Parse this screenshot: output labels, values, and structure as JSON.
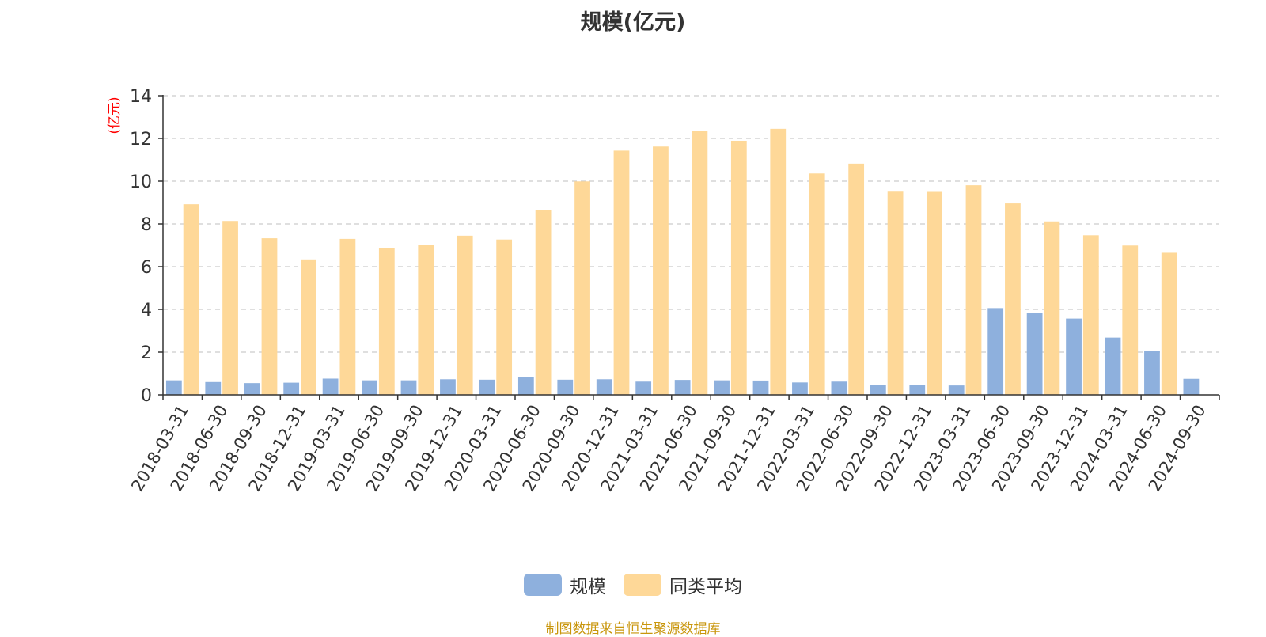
{
  "chart_data": {
    "type": "bar",
    "title": "规模(亿元)",
    "ylabel": "(亿元)",
    "xlabel": "",
    "ylim": [
      0,
      14
    ],
    "yticks": [
      0,
      2,
      4,
      6,
      8,
      10,
      12,
      14
    ],
    "grid": true,
    "legend_position": "bottom-center",
    "categories": [
      "2018-03-31",
      "2018-06-30",
      "2018-09-30",
      "2018-12-31",
      "2019-03-31",
      "2019-06-30",
      "2019-09-30",
      "2019-12-31",
      "2020-03-31",
      "2020-06-30",
      "2020-09-30",
      "2020-12-31",
      "2021-03-31",
      "2021-06-30",
      "2021-09-30",
      "2021-12-31",
      "2022-03-31",
      "2022-06-30",
      "2022-09-30",
      "2022-12-31",
      "2023-03-31",
      "2023-06-30",
      "2023-09-30",
      "2023-12-31",
      "2024-03-31",
      "2024-06-30",
      "2024-09-30"
    ],
    "series": [
      {
        "name": "规模",
        "color": "#8eb0dd",
        "values": [
          0.68,
          0.6,
          0.55,
          0.57,
          0.76,
          0.68,
          0.68,
          0.73,
          0.71,
          0.84,
          0.71,
          0.73,
          0.62,
          0.7,
          0.68,
          0.67,
          0.58,
          0.62,
          0.48,
          0.45,
          0.44,
          4.06,
          3.83,
          3.57,
          2.68,
          2.06,
          0.75
        ]
      },
      {
        "name": "同类平均",
        "color": "#fed898",
        "values": [
          8.92,
          8.14,
          7.33,
          6.34,
          7.3,
          6.87,
          7.02,
          7.45,
          7.27,
          8.65,
          9.99,
          11.43,
          11.62,
          12.37,
          11.89,
          12.45,
          10.36,
          10.82,
          9.51,
          9.5,
          9.81,
          8.96,
          8.12,
          7.47,
          6.99,
          6.65,
          null
        ]
      }
    ]
  },
  "source_note": "制图数据来自恒生聚源数据库",
  "colors": {
    "axis": "#333333",
    "grid": "#cccccc",
    "ylabel": "#ff0000",
    "source_note": "#c9960c"
  }
}
